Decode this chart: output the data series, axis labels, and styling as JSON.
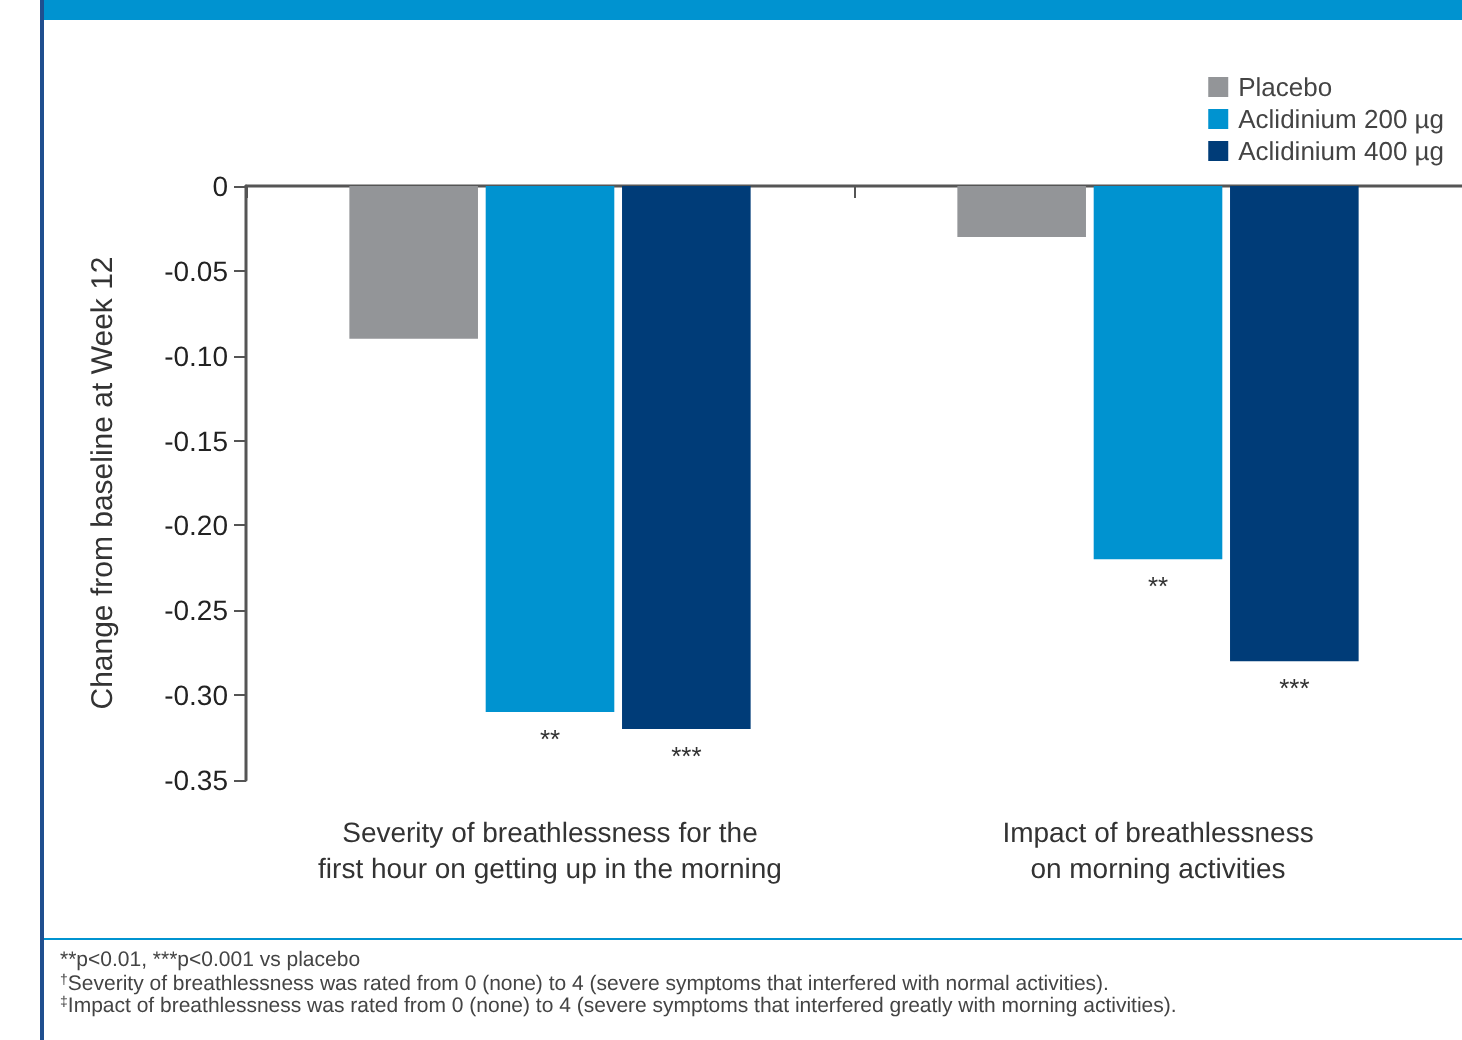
{
  "chart_data": {
    "type": "bar",
    "categories": [
      "Severity of breathlessness for the\nfirst hour on getting up in the morning",
      "Impact of breathlessness\non morning activities"
    ],
    "series": [
      {
        "name": "Placebo",
        "color": "#939598",
        "values": [
          -0.09,
          -0.03
        ]
      },
      {
        "name": "Aclidinium 200 µg",
        "color": "#0093d0",
        "values": [
          -0.31,
          -0.22
        ],
        "value_labels": [
          "**",
          "**"
        ]
      },
      {
        "name": "Aclidinium 400 µg",
        "color": "#003c78",
        "values": [
          -0.32,
          -0.28
        ],
        "value_labels": [
          "***",
          "***"
        ]
      }
    ],
    "ylabel": "Change from baseline at Week 12",
    "ylim": [
      -0.35,
      0
    ],
    "yticks": [
      {
        "value": -0.35,
        "label": "-0.35"
      },
      {
        "value": -0.3,
        "label": "-0.30"
      },
      {
        "value": -0.25,
        "label": "-0.25"
      },
      {
        "value": -0.2,
        "label": "-0.20"
      },
      {
        "value": -0.15,
        "label": "-0.15"
      },
      {
        "value": -0.1,
        "label": "-0.10"
      },
      {
        "value": -0.05,
        "label": "-0.05"
      },
      0
    ],
    "annotations": [
      "**p<0.01, ***p<0.001 vs placebo",
      "$^{†}$Severity of breathlessness was rated from 0 (none) to 4 (severe symptoms that interfered with normal activities).",
      "$^{‡}$Impact of breathlessness was rated from 0 (none) to 4 (severe symptoms that interfered greatly with morning activities)."
    ],
    "grid": false,
    "legend": "top right"
  }
}
